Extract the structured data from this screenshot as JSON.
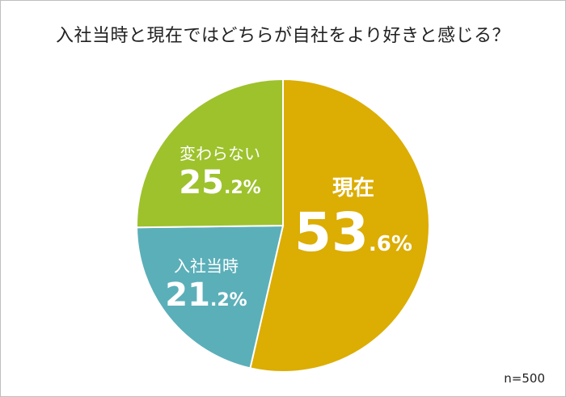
{
  "chart_data": {
    "type": "pie",
    "title": "入社当時と現在ではどちらが自社をより好きと感じる？",
    "categories": [
      "現在",
      "入社当時",
      "変わらない"
    ],
    "values": [
      53.6,
      21.2,
      25.2
    ],
    "value_labels": [
      {
        "int": "53",
        "dec": ".6%"
      },
      {
        "int": "21",
        "dec": ".2%"
      },
      {
        "int": "25",
        "dec": ".2%"
      }
    ],
    "colors": [
      "#dcad02",
      "#5bafb9",
      "#9dc22c"
    ],
    "start": "12 o'clock, clockwise",
    "note": "n=500"
  }
}
